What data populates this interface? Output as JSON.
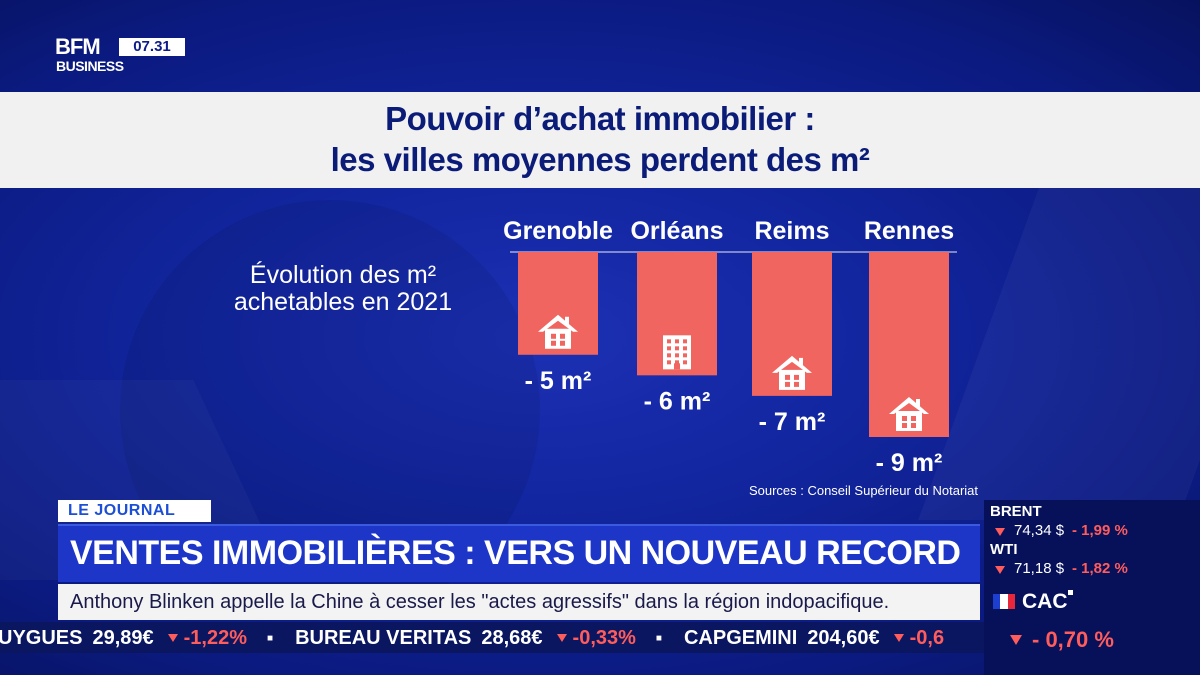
{
  "logo": {
    "brand": "BFM",
    "sub": "BUSINESS",
    "time": "07.31"
  },
  "title": {
    "line1": "Pouvoir d’achat immobilier :",
    "line2": "les villes moyennes perdent des m²"
  },
  "chart_data": {
    "type": "bar",
    "orientation": "vertical-downward",
    "title": "Pouvoir d’achat immobilier : les villes moyennes perdent des m²",
    "ylabel": [
      "Évolution des m²",
      "achetables en 2021"
    ],
    "categories": [
      "Grenoble",
      "Orléans",
      "Reims",
      "Rennes"
    ],
    "values": [
      -5,
      -6,
      -7,
      -9
    ],
    "value_labels": [
      "- 5 m²",
      "- 6 m²",
      "- 7 m²",
      "- 9 m²"
    ],
    "unit": "m²",
    "icons": [
      "house-icon",
      "apartment-building-icon",
      "house-icon",
      "house-icon"
    ],
    "bar_color": "#f0655f",
    "ylim": [
      -9,
      0
    ],
    "grid": false,
    "legend": "none",
    "source": "Sources : Conseil Supérieur du Notariat"
  },
  "lower_third": {
    "tag": "LE JOURNAL",
    "headline": "VENTES IMMOBILIÈRES : VERS UN NOUVEAU RECORD",
    "subline": "Anthony Blinken appelle la Chine à cesser les \"actes agressifs\" dans la région indopacifique."
  },
  "ticker": [
    {
      "name": "UYGUES",
      "value": "29,89€",
      "change": "-1,22%"
    },
    {
      "name": "BUREAU VERITAS",
      "value": "28,68€",
      "change": "-0,33%"
    },
    {
      "name": "CAPGEMINI",
      "value": "204,60€",
      "change": "-0,6"
    }
  ],
  "markets": {
    "brent": {
      "name": "BRENT",
      "value": "74,34 $",
      "change": "- 1,99 %"
    },
    "wti": {
      "name": "WTI",
      "value": "71,18 $",
      "change": "- 1,82 %"
    },
    "cac": {
      "name": "CAC",
      "change": "- 0,70 %"
    }
  },
  "colors": {
    "background": "#1226a0",
    "title_text": "#0b1c78",
    "headline_bar": "#1d36c8",
    "negative": "#ff5c5c"
  }
}
